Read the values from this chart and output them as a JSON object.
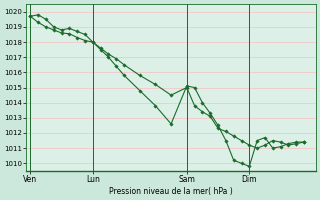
{
  "bg_color": "#cce8dc",
  "plot_bg_color": "#ddf0e8",
  "grid_color": "#f0c8c8",
  "line_color": "#1a6b2a",
  "marker_color": "#1a6b2a",
  "xlabel": "Pression niveau de la mer( hPa )",
  "ylim": [
    1009.5,
    1020.5
  ],
  "yticks": [
    1010,
    1011,
    1012,
    1013,
    1014,
    1015,
    1016,
    1017,
    1018,
    1019,
    1020
  ],
  "xtick_labels": [
    "Ven",
    "Lun",
    "Sam",
    "Dim"
  ],
  "xtick_positions": [
    0,
    48,
    120,
    168
  ],
  "vline_positions": [
    0,
    48,
    120,
    168
  ],
  "total_hours": 216,
  "series1_x": [
    0,
    6,
    12,
    18,
    24,
    30,
    36,
    42,
    48,
    54,
    60,
    66,
    72,
    84,
    96,
    108,
    120,
    126,
    132,
    138,
    144,
    150,
    156,
    162,
    168,
    174,
    180,
    186,
    192,
    198,
    204,
    210
  ],
  "series1_y": [
    1019.7,
    1019.8,
    1019.5,
    1019.0,
    1018.8,
    1018.9,
    1018.7,
    1018.5,
    1018.0,
    1017.5,
    1017.0,
    1016.4,
    1015.8,
    1014.8,
    1013.8,
    1012.6,
    1015.1,
    1015.0,
    1014.0,
    1013.3,
    1012.5,
    1011.5,
    1010.2,
    1010.0,
    1009.8,
    1011.5,
    1011.7,
    1011.0,
    1011.1,
    1011.3,
    1011.4,
    1011.4
  ],
  "series2_x": [
    0,
    6,
    12,
    18,
    24,
    30,
    36,
    42,
    48,
    54,
    60,
    66,
    72,
    84,
    96,
    108,
    120,
    126,
    132,
    138,
    144,
    150,
    156,
    162,
    168,
    174,
    180,
    186,
    192,
    198,
    204,
    210
  ],
  "series2_y": [
    1019.7,
    1019.3,
    1019.0,
    1018.8,
    1018.6,
    1018.55,
    1018.3,
    1018.1,
    1018.0,
    1017.6,
    1017.2,
    1016.9,
    1016.5,
    1015.8,
    1015.2,
    1014.5,
    1015.0,
    1013.8,
    1013.4,
    1013.1,
    1012.3,
    1012.1,
    1011.8,
    1011.5,
    1011.2,
    1011.0,
    1011.2,
    1011.5,
    1011.4,
    1011.2,
    1011.3,
    1011.4
  ]
}
